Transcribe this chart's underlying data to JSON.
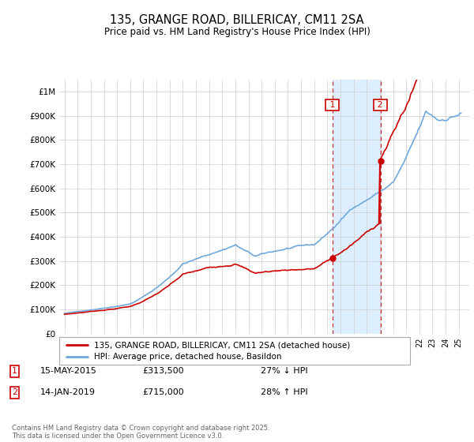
{
  "title": "135, GRANGE ROAD, BILLERICAY, CM11 2SA",
  "subtitle": "Price paid vs. HM Land Registry's House Price Index (HPI)",
  "legend_line1": "135, GRANGE ROAD, BILLERICAY, CM11 2SA (detached house)",
  "legend_line2": "HPI: Average price, detached house, Basildon",
  "annotation1_date": "15-MAY-2015",
  "annotation1_price": "£313,500",
  "annotation1_text": "27% ↓ HPI",
  "annotation2_date": "14-JAN-2019",
  "annotation2_price": "£715,000",
  "annotation2_text": "28% ↑ HPI",
  "footer": "Contains HM Land Registry data © Crown copyright and database right 2025.\nThis data is licensed under the Open Government Licence v3.0.",
  "house_color": "#cc0000",
  "hpi_color": "#6fa8dc",
  "shaded_color": "#ddeeff",
  "grid_color": "#cccccc",
  "ylim": [
    0,
    1050000
  ],
  "yticks": [
    0,
    100000,
    200000,
    300000,
    400000,
    500000,
    600000,
    700000,
    800000,
    900000,
    1000000
  ],
  "ytick_labels": [
    "£0",
    "£100K",
    "£200K",
    "£300K",
    "£400K",
    "£500K",
    "£600K",
    "£700K",
    "£800K",
    "£900K",
    "£1M"
  ],
  "sale1_x": 2015.37,
  "sale1_y": 313500,
  "sale2_x": 2019.04,
  "sale2_y": 715000,
  "xmin": 1994.6,
  "xmax": 2025.8
}
